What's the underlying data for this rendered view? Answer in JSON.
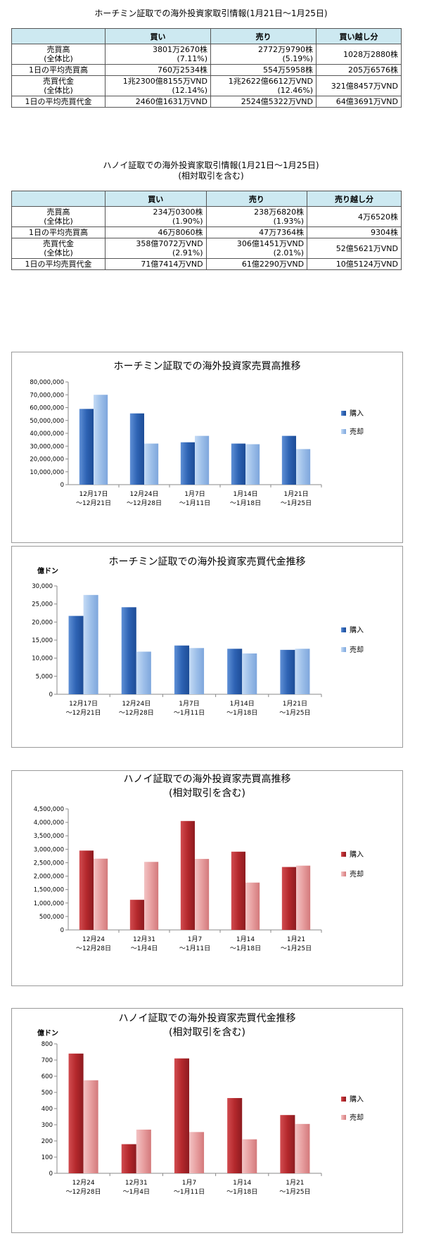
{
  "hcm_table": {
    "title": "ホーチミン証取での海外投資家取引情報(1月21日～1月25日)",
    "headers": [
      "",
      "買い",
      "売り",
      "買い越し分"
    ],
    "rows": [
      {
        "label": [
          "売買高",
          "(全体比)"
        ],
        "buy": [
          "3801万2670株",
          "(7.11%)"
        ],
        "sell": [
          "2772万9790株",
          "(5.19%)"
        ],
        "net": [
          "1028万2880株"
        ]
      },
      {
        "label": [
          "1日の平均売買高"
        ],
        "buy": [
          "760万2534株"
        ],
        "sell": [
          "554万5958株"
        ],
        "net": [
          "205万6576株"
        ]
      },
      {
        "label": [
          "売買代金",
          "(全体比)"
        ],
        "buy": [
          "1兆2300億8155万VND",
          "(12.14%)"
        ],
        "sell": [
          "1兆2622億6612万VND",
          "(12.46%)"
        ],
        "net": [
          "321億8457万VND"
        ]
      },
      {
        "label": [
          "1日の平均売買代金"
        ],
        "buy": [
          "2460億1631万VND"
        ],
        "sell": [
          "2524億5322万VND"
        ],
        "net": [
          "64億3691万VND"
        ]
      }
    ]
  },
  "hn_table": {
    "title": [
      "ハノイ証取での海外投資家取引情報(1月21日～1月25日)",
      "(相対取引を含む)"
    ],
    "headers": [
      "",
      "買い",
      "売り",
      "売り越し分"
    ],
    "rows": [
      {
        "label": [
          "売買高",
          "(全体比)"
        ],
        "buy": [
          "234万0300株",
          "(1.90%)"
        ],
        "sell": [
          "238万6820株",
          "(1.93%)"
        ],
        "net": [
          "4万6520株"
        ]
      },
      {
        "label": [
          "1日の平均売買高"
        ],
        "buy": [
          "46万8060株"
        ],
        "sell": [
          "47万7364株"
        ],
        "net": [
          "9304株"
        ]
      },
      {
        "label": [
          "売買代金",
          "(全体比)"
        ],
        "buy": [
          "358億7072万VND",
          "(2.91%)"
        ],
        "sell": [
          "306億1451万VND",
          "(2.01%)"
        ],
        "net": [
          "52億5621万VND"
        ]
      },
      {
        "label": [
          "1日の平均売買代金"
        ],
        "buy": [
          "71億7414万VND"
        ],
        "sell": [
          "61億2290万VND"
        ],
        "net": [
          "10億5124万VND"
        ]
      }
    ]
  },
  "colors": {
    "blue_buy": "#2e63b4",
    "blue_sell": "#9dbfe9",
    "red_buy": "#b4282c",
    "red_sell": "#e79e9f",
    "header_bg": "#cde9f1",
    "grid": "#888888"
  },
  "chart_data": [
    {
      "type": "bar",
      "title": [
        "ホーチミン証取での海外投資家売買高推移"
      ],
      "ylabel": "",
      "categories": [
        [
          "12月17日",
          "～12月21日"
        ],
        [
          "12月24日",
          "～12月28日"
        ],
        [
          "1月7日",
          "～1月11日"
        ],
        [
          "1月14日",
          "～1月18日"
        ],
        [
          "1月21日",
          "～1月25日"
        ]
      ],
      "series": [
        {
          "name": "購入",
          "values": [
            59000000,
            55500000,
            33000000,
            32000000,
            38000000
          ]
        },
        {
          "name": "売却",
          "values": [
            70000000,
            32000000,
            38000000,
            31500000,
            27700000
          ]
        }
      ],
      "ylim": [
        0,
        80000000
      ],
      "yticks": [
        "0",
        "10,000,000",
        "20,000,000",
        "30,000,000",
        "40,000,000",
        "50,000,000",
        "60,000,000",
        "70,000,000",
        "80,000,000"
      ],
      "legend_position": "right",
      "theme": "blue"
    },
    {
      "type": "bar",
      "title": [
        "ホーチミン証取での海外投資家売買代金推移"
      ],
      "ylabel": "億ドン",
      "categories": [
        [
          "12月17日",
          "～12月21日"
        ],
        [
          "12月24日",
          "～12月28日"
        ],
        [
          "1月7日",
          "～1月11日"
        ],
        [
          "1月14日",
          "～1月18日"
        ],
        [
          "1月21日",
          "～1月25日"
        ]
      ],
      "series": [
        {
          "name": "購入",
          "values": [
            21700,
            24100,
            13500,
            12600,
            12300
          ]
        },
        {
          "name": "売却",
          "values": [
            27500,
            11800,
            12800,
            11300,
            12600
          ]
        }
      ],
      "ylim": [
        0,
        30000
      ],
      "yticks": [
        "0",
        "5,000",
        "10,000",
        "15,000",
        "20,000",
        "25,000",
        "30,000"
      ],
      "legend_position": "right",
      "theme": "blue"
    },
    {
      "type": "bar",
      "title": [
        "ハノイ証取での海外投資家売買高推移",
        "(相対取引を含む)"
      ],
      "ylabel": "",
      "categories": [
        [
          "12月24",
          "～12月28日"
        ],
        [
          "12月31",
          "～1月4日"
        ],
        [
          "1月7",
          "～1月11日"
        ],
        [
          "1月14",
          "～1月18日"
        ],
        [
          "1月21",
          "～1月25日"
        ]
      ],
      "series": [
        {
          "name": "購入",
          "values": [
            2950000,
            1120000,
            4050000,
            2910000,
            2340000
          ]
        },
        {
          "name": "売却",
          "values": [
            2650000,
            2530000,
            2640000,
            1760000,
            2390000
          ]
        }
      ],
      "ylim": [
        0,
        4500000
      ],
      "yticks": [
        "0",
        "500,000",
        "1,000,000",
        "1,500,000",
        "2,000,000",
        "2,500,000",
        "3,000,000",
        "3,500,000",
        "4,000,000",
        "4,500,000"
      ],
      "legend_position": "right",
      "theme": "red"
    },
    {
      "type": "bar",
      "title": [
        "ハノイ証取での海外投資家売買代金推移",
        "(相対取引を含む)"
      ],
      "ylabel": "億ドン",
      "categories": [
        [
          "12月24",
          "～12月28日"
        ],
        [
          "12月31",
          "～1月4日"
        ],
        [
          "1月7",
          "～1月11日"
        ],
        [
          "1月14",
          "～1月18日"
        ],
        [
          "1月21",
          "～1月25日"
        ]
      ],
      "series": [
        {
          "name": "購入",
          "values": [
            740,
            180,
            710,
            465,
            360
          ]
        },
        {
          "name": "売却",
          "values": [
            575,
            270,
            255,
            210,
            305
          ]
        }
      ],
      "ylim": [
        0,
        800
      ],
      "yticks": [
        "0",
        "100",
        "200",
        "300",
        "400",
        "500",
        "600",
        "700",
        "800"
      ],
      "legend_position": "right",
      "theme": "red"
    }
  ]
}
